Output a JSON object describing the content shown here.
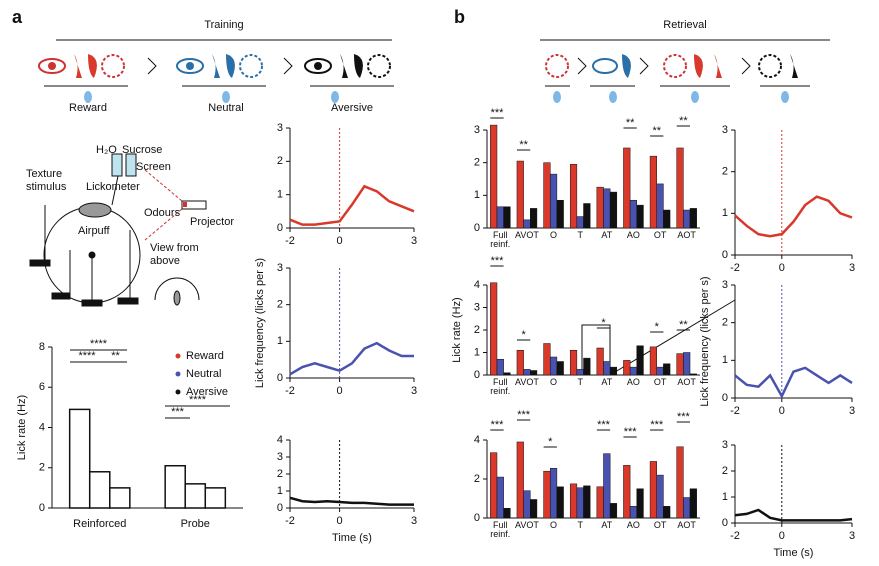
{
  "figure": {
    "panel_a": "a",
    "panel_b": "b",
    "training": "Training",
    "retrieval": "Retrieval",
    "stages": [
      "Reward",
      "Neutral",
      "Aversive"
    ],
    "setup": {
      "water": "H₂O",
      "sucrose": "Sucrose",
      "screen": "Screen",
      "texture": "Texture stimulus",
      "lickometer": "Lickometer",
      "odours": "Odours",
      "projector": "Projector",
      "airpuff": "Airpuff",
      "view": "View from above"
    }
  },
  "chart_data": [
    {
      "type": "bar",
      "categories": [
        "Reinforced",
        "Probe"
      ],
      "series": [
        {
          "name": "Reward",
          "color": "#d8392b",
          "values": [
            4.9,
            2.1
          ]
        },
        {
          "name": "Neutral",
          "color": "#4a52b0",
          "values": [
            1.8,
            1.2
          ]
        },
        {
          "name": "Aversive",
          "color": "#111111",
          "values": [
            1.0,
            1.0
          ]
        }
      ],
      "ylim": [
        0,
        8
      ],
      "yticks": [
        0,
        2,
        4,
        6,
        8
      ],
      "ylabel": "Lick rate (Hz)",
      "annotations": [
        "****",
        "****",
        "**",
        "****",
        "***"
      ]
    },
    {
      "type": "line",
      "x": [
        -2,
        -1.5,
        -1,
        -0.5,
        0,
        0.5,
        1,
        1.5,
        2,
        2.5,
        3
      ],
      "series": [
        {
          "color": "#d8392b",
          "values": [
            0.25,
            0.1,
            0.1,
            0.15,
            0.2,
            0.7,
            1.25,
            1.1,
            0.8,
            0.65,
            0.5
          ]
        }
      ],
      "xlim": [
        -2,
        3
      ],
      "xticks": [
        -2,
        0,
        3
      ],
      "ylim": [
        0,
        3
      ],
      "yticks": [
        0,
        1,
        2,
        3
      ]
    },
    {
      "type": "line",
      "x": [
        -2,
        -1.5,
        -1,
        -0.5,
        0,
        0.5,
        1,
        1.5,
        2,
        2.5,
        3
      ],
      "series": [
        {
          "color": "#4a52b0",
          "values": [
            0.1,
            0.3,
            0.4,
            0.3,
            0.2,
            0.4,
            0.8,
            0.95,
            0.75,
            0.6,
            0.6
          ]
        }
      ],
      "xlim": [
        -2,
        3
      ],
      "xticks": [
        -2,
        0,
        3
      ],
      "ylim": [
        0,
        3
      ],
      "yticks": [
        0,
        1,
        2,
        3
      ],
      "ylabel": "Lick frequency (licks per s)"
    },
    {
      "type": "line",
      "x": [
        -2,
        -1.5,
        -1,
        -0.5,
        0,
        0.5,
        1,
        1.5,
        2,
        2.5,
        3
      ],
      "series": [
        {
          "color": "#111111",
          "values": [
            0.6,
            0.4,
            0.35,
            0.4,
            0.35,
            0.3,
            0.3,
            0.25,
            0.2,
            0.2,
            0.2
          ]
        }
      ],
      "xlim": [
        -2,
        3
      ],
      "xticks": [
        -2,
        0,
        3
      ],
      "ylim": [
        0,
        4
      ],
      "yticks": [
        0,
        1,
        2,
        3,
        4
      ],
      "xlabel": "Time (s)"
    },
    {
      "type": "bar",
      "categories": [
        "Full reinf.",
        "AVOT",
        "O",
        "T",
        "AT",
        "AO",
        "OT",
        "AOT"
      ],
      "series": [
        {
          "color": "#d8392b",
          "values": [
            3.15,
            2.05,
            2.0,
            1.95,
            1.25,
            2.45,
            2.2,
            2.45
          ]
        },
        {
          "color": "#4a52b0",
          "values": [
            0.65,
            0.25,
            1.65,
            0.35,
            1.2,
            0.85,
            1.35,
            0.55
          ]
        },
        {
          "color": "#111111",
          "values": [
            0.65,
            0.6,
            0.85,
            0.75,
            1.1,
            0.7,
            0.55,
            0.6
          ]
        }
      ],
      "ylim": [
        0,
        3
      ],
      "yticks": [
        0,
        1,
        2,
        3
      ],
      "annotations": [
        "***",
        "**",
        "**",
        "**",
        "**"
      ]
    },
    {
      "type": "bar",
      "categories": [
        "Full reinf.",
        "AVOT",
        "O",
        "T",
        "AT",
        "AO",
        "OT",
        "AOT"
      ],
      "series": [
        {
          "color": "#d8392b",
          "values": [
            4.1,
            1.1,
            1.4,
            1.1,
            1.2,
            0.65,
            1.25,
            0.95
          ]
        },
        {
          "color": "#4a52b0",
          "values": [
            0.7,
            0.25,
            0.8,
            0.25,
            0.6,
            0.35,
            0.35,
            1.0
          ]
        },
        {
          "color": "#111111",
          "values": [
            0.1,
            0.2,
            0.6,
            0.75,
            0.35,
            1.3,
            0.5,
            0.05
          ]
        }
      ],
      "ylim": [
        0,
        4
      ],
      "yticks": [
        0,
        1,
        2,
        3,
        4
      ],
      "ylabel": "Lick rate (Hz)",
      "annotations": [
        "***",
        "*",
        "*",
        "*",
        "**"
      ]
    },
    {
      "type": "bar",
      "categories": [
        "Full reinf.",
        "AVOT",
        "O",
        "T",
        "AT",
        "AO",
        "OT",
        "AOT"
      ],
      "series": [
        {
          "color": "#d8392b",
          "values": [
            3.35,
            3.9,
            2.4,
            1.75,
            1.6,
            2.7,
            2.9,
            3.65
          ]
        },
        {
          "color": "#4a52b0",
          "values": [
            2.1,
            1.4,
            2.55,
            1.55,
            3.3,
            0.6,
            2.2,
            1.05
          ]
        },
        {
          "color": "#111111",
          "values": [
            0.5,
            0.95,
            1.6,
            1.65,
            0.75,
            1.5,
            0.6,
            1.5
          ]
        }
      ],
      "ylim": [
        0,
        4
      ],
      "yticks": [
        0,
        2,
        4
      ],
      "annotations": [
        "***",
        "***",
        "*",
        "***",
        "***",
        "***",
        "***"
      ]
    },
    {
      "type": "line",
      "x": [
        -2,
        -1.5,
        -1,
        -0.5,
        0,
        0.5,
        1,
        1.5,
        2,
        2.5,
        3
      ],
      "series": [
        {
          "color": "#d8392b",
          "values": [
            0.95,
            0.7,
            0.5,
            0.45,
            0.5,
            0.8,
            1.2,
            1.4,
            1.3,
            1.0,
            0.9
          ]
        }
      ],
      "xlim": [
        -2,
        3
      ],
      "xticks": [
        -2,
        0,
        3
      ],
      "ylim": [
        0,
        3
      ],
      "yticks": [
        0,
        1,
        2,
        3
      ]
    },
    {
      "type": "line",
      "x": [
        -2,
        -1.5,
        -1,
        -0.5,
        0,
        0.5,
        1,
        1.5,
        2,
        2.5,
        3
      ],
      "series": [
        {
          "color": "#4a52b0",
          "values": [
            0.6,
            0.35,
            0.3,
            0.6,
            0.05,
            0.7,
            0.8,
            0.6,
            0.4,
            0.6,
            0.4
          ]
        }
      ],
      "xlim": [
        -2,
        3
      ],
      "xticks": [
        -2,
        0,
        3
      ],
      "ylim": [
        0,
        3
      ],
      "yticks": [
        0,
        1,
        2,
        3
      ],
      "ylabel": "Lick frequency (licks per s)"
    },
    {
      "type": "line",
      "x": [
        -2,
        -1.5,
        -1,
        -0.5,
        0,
        0.5,
        1,
        1.5,
        2,
        2.5,
        3
      ],
      "series": [
        {
          "color": "#111111",
          "values": [
            0.3,
            0.35,
            0.5,
            0.2,
            0.1,
            0.1,
            0.1,
            0.1,
            0.1,
            0.1,
            0.15
          ]
        }
      ],
      "xlim": [
        -2,
        3
      ],
      "xticks": [
        -2,
        0,
        3
      ],
      "ylim": [
        0,
        3
      ],
      "yticks": [
        0,
        1,
        2,
        3
      ],
      "xlabel": "Time (s)"
    }
  ]
}
